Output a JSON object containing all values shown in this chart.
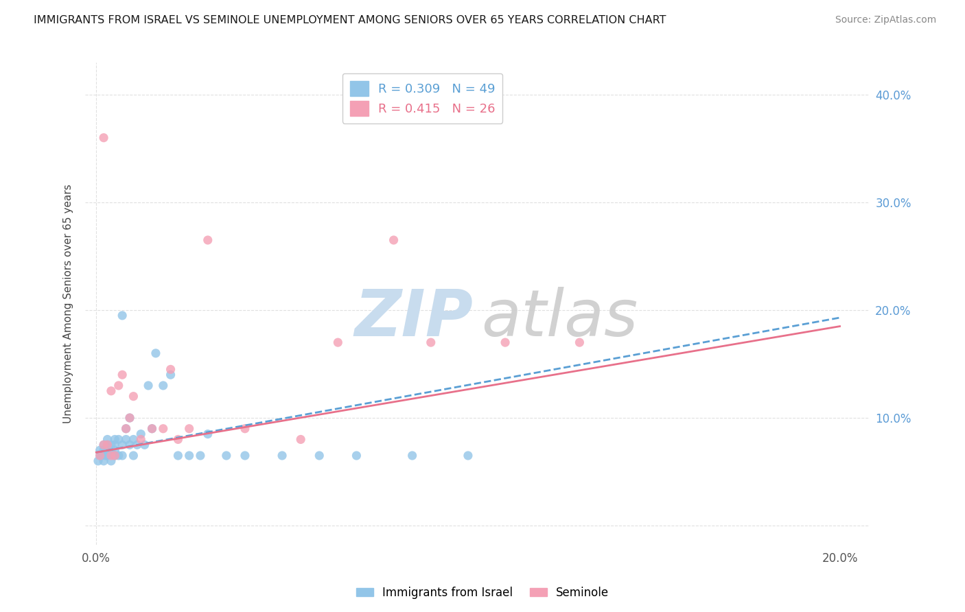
{
  "title": "IMMIGRANTS FROM ISRAEL VS SEMINOLE UNEMPLOYMENT AMONG SENIORS OVER 65 YEARS CORRELATION CHART",
  "source": "Source: ZipAtlas.com",
  "ylabel": "Unemployment Among Seniors over 65 years",
  "y_ticks": [
    0.0,
    0.1,
    0.2,
    0.3,
    0.4
  ],
  "y_tick_labels": [
    "",
    "10.0%",
    "20.0%",
    "30.0%",
    "40.0%"
  ],
  "x_ticks": [
    0.0,
    0.05,
    0.1,
    0.15,
    0.2
  ],
  "x_tick_labels": [
    "0.0%",
    "",
    "",
    "",
    "20.0%"
  ],
  "xlim": [
    -0.003,
    0.208
  ],
  "ylim": [
    -0.018,
    0.43
  ],
  "r_blue": 0.309,
  "n_blue": 49,
  "r_pink": 0.415,
  "n_pink": 26,
  "legend_label_blue": "Immigrants from Israel",
  "legend_label_pink": "Seminole",
  "blue_color": "#92C5E8",
  "pink_color": "#F4A0B5",
  "blue_line_color": "#5A9FD4",
  "pink_line_color": "#E8708A",
  "grid_color": "#E0E0E0",
  "watermark_zip_color": "#DDEEFF",
  "watermark_atlas_color": "#CCCCCC",
  "blue_scatter_x": [
    0.0005,
    0.001,
    0.001,
    0.0015,
    0.002,
    0.002,
    0.002,
    0.0025,
    0.003,
    0.003,
    0.003,
    0.003,
    0.004,
    0.004,
    0.004,
    0.005,
    0.005,
    0.005,
    0.005,
    0.006,
    0.006,
    0.007,
    0.007,
    0.007,
    0.008,
    0.008,
    0.009,
    0.009,
    0.01,
    0.01,
    0.011,
    0.012,
    0.013,
    0.014,
    0.015,
    0.016,
    0.018,
    0.02,
    0.022,
    0.025,
    0.028,
    0.03,
    0.035,
    0.04,
    0.05,
    0.06,
    0.07,
    0.085,
    0.1
  ],
  "blue_scatter_y": [
    0.06,
    0.065,
    0.07,
    0.065,
    0.06,
    0.07,
    0.075,
    0.065,
    0.07,
    0.075,
    0.065,
    0.08,
    0.06,
    0.07,
    0.075,
    0.065,
    0.07,
    0.075,
    0.08,
    0.065,
    0.08,
    0.065,
    0.075,
    0.195,
    0.08,
    0.09,
    0.075,
    0.1,
    0.065,
    0.08,
    0.075,
    0.085,
    0.075,
    0.13,
    0.09,
    0.16,
    0.13,
    0.14,
    0.065,
    0.065,
    0.065,
    0.085,
    0.065,
    0.065,
    0.065,
    0.065,
    0.065,
    0.065,
    0.065
  ],
  "pink_scatter_x": [
    0.001,
    0.002,
    0.002,
    0.003,
    0.004,
    0.004,
    0.005,
    0.006,
    0.007,
    0.008,
    0.009,
    0.01,
    0.012,
    0.015,
    0.018,
    0.02,
    0.022,
    0.025,
    0.03,
    0.04,
    0.055,
    0.065,
    0.08,
    0.09,
    0.11,
    0.13
  ],
  "pink_scatter_y": [
    0.065,
    0.075,
    0.36,
    0.075,
    0.065,
    0.125,
    0.065,
    0.13,
    0.14,
    0.09,
    0.1,
    0.12,
    0.08,
    0.09,
    0.09,
    0.145,
    0.08,
    0.09,
    0.265,
    0.09,
    0.08,
    0.17,
    0.265,
    0.17,
    0.17,
    0.17
  ],
  "blue_line_x0": 0.0,
  "blue_line_y0": 0.068,
  "blue_line_x1": 0.2,
  "blue_line_y1": 0.193,
  "pink_line_x0": 0.0,
  "pink_line_y0": 0.068,
  "pink_line_x1": 0.2,
  "pink_line_y1": 0.185
}
